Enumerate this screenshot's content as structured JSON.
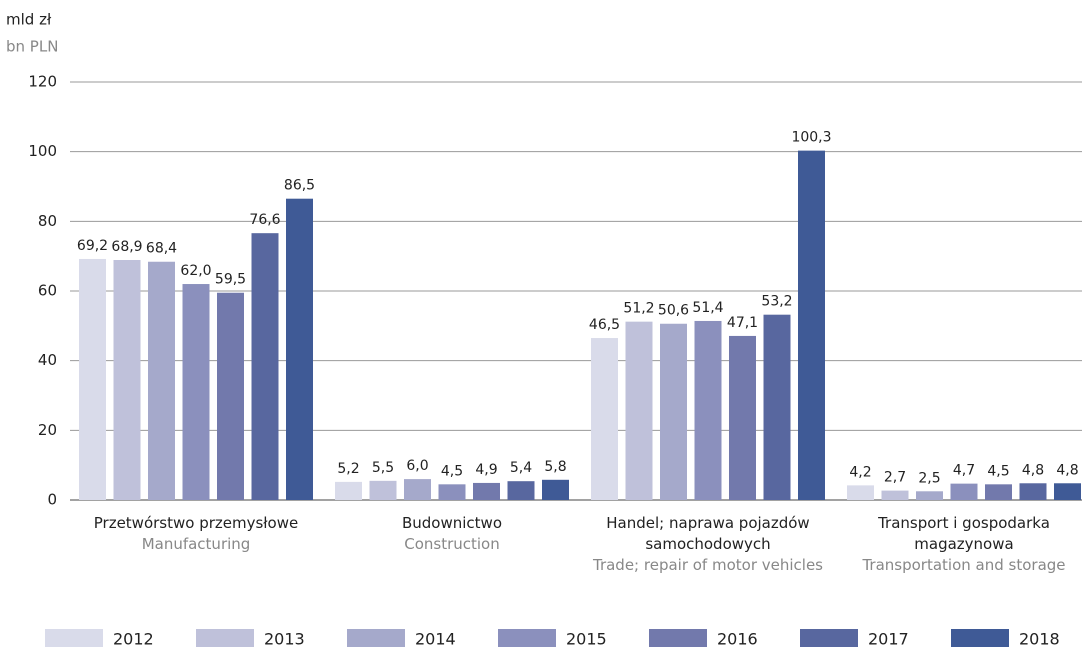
{
  "chart_data": {
    "type": "bar",
    "y_label": "mld zł",
    "y_label_en": "bn PLN",
    "categories": [
      "Przetwórstwo przemysłowe",
      "Budownictwo",
      "Handel; naprawa pojazdów samochodowych",
      "Transport i gospodarka magazynowa"
    ],
    "categories_en": [
      "Manufacturing",
      "Construction",
      "Trade; repair of motor vehicles",
      "Transportation and storage"
    ],
    "series": [
      {
        "name": "2012",
        "color": "#d9dbea",
        "values": [
          69.2,
          5.2,
          46.5,
          4.2
        ],
        "value_labels": [
          "69,2",
          "5,2",
          "46,5",
          "4,2"
        ]
      },
      {
        "name": "2013",
        "color": "#bfc1da",
        "values": [
          68.9,
          5.5,
          51.2,
          2.7
        ],
        "value_labels": [
          "68,9",
          "5,5",
          "51,2",
          "2,7"
        ]
      },
      {
        "name": "2014",
        "color": "#a5a9cb",
        "values": [
          68.4,
          6.0,
          50.6,
          2.5
        ],
        "value_labels": [
          "68,4",
          "6,0",
          "50,6",
          "2,5"
        ]
      },
      {
        "name": "2015",
        "color": "#8b90bd",
        "values": [
          62.0,
          4.5,
          51.4,
          4.7
        ],
        "value_labels": [
          "62,0",
          "4,5",
          "51,4",
          "4,7"
        ]
      },
      {
        "name": "2016",
        "color": "#7279ac",
        "values": [
          59.5,
          4.9,
          47.1,
          4.5
        ],
        "value_labels": [
          "59,5",
          "4,9",
          "47,1",
          "4,5"
        ]
      },
      {
        "name": "2017",
        "color": "#58679f",
        "values": [
          76.6,
          5.4,
          53.2,
          4.8
        ],
        "value_labels": [
          "76,6",
          "5,4",
          "53,2",
          "4,8"
        ]
      },
      {
        "name": "2018",
        "color": "#3f5a96",
        "values": [
          86.5,
          5.8,
          100.3,
          4.8
        ],
        "value_labels": [
          "86,5",
          "5,8",
          "100,3",
          "4,8"
        ]
      }
    ],
    "ylim": [
      0,
      120
    ],
    "yticks": [
      0,
      20,
      40,
      60,
      80,
      100,
      120
    ],
    "grid": true,
    "legend": "bottom"
  }
}
